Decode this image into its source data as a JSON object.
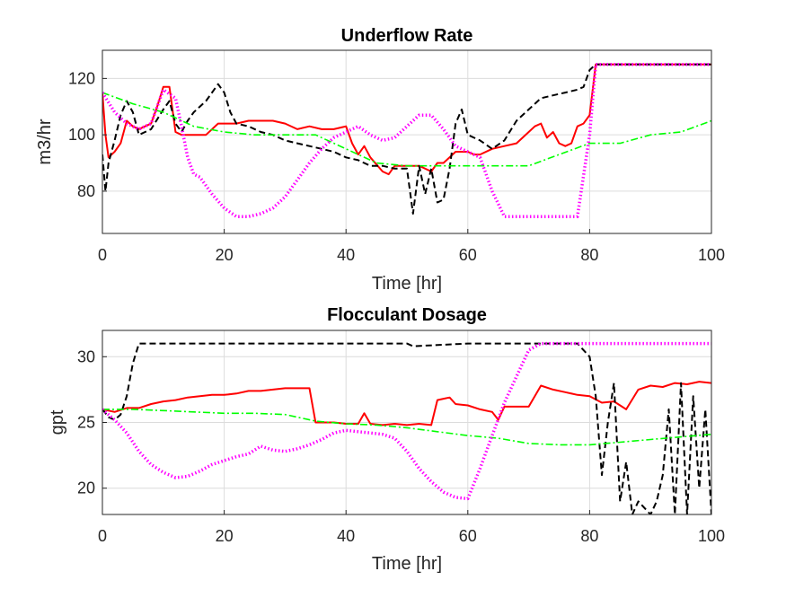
{
  "chart_data": [
    {
      "type": "line",
      "title": "Underflow Rate",
      "xlabel": "Time [hr]",
      "ylabel": "m3/hr",
      "xlim": [
        0,
        100
      ],
      "ylim": [
        65,
        130
      ],
      "xticks": [
        0,
        20,
        40,
        60,
        80,
        100
      ],
      "xtick_labels": [
        "0",
        "20",
        "40",
        "60",
        "80",
        "100"
      ],
      "yticks": [
        80,
        100,
        120
      ],
      "ytick_labels": [
        "80",
        "100",
        "120"
      ],
      "grid": true,
      "series": [
        {
          "color": "#ff0000",
          "style": "solid",
          "x": [
            0,
            0.5,
            1,
            2,
            3,
            4,
            5,
            6,
            7,
            8,
            9,
            10,
            11,
            12,
            13,
            14,
            15,
            17,
            19,
            20,
            22,
            24,
            26,
            28,
            30,
            32,
            34,
            36,
            38,
            40,
            41,
            42,
            43,
            44,
            46,
            47,
            48,
            50,
            52,
            54,
            55,
            56,
            57,
            58,
            60,
            61,
            62,
            64,
            66,
            68,
            70,
            71,
            72,
            73,
            74,
            75,
            76,
            77,
            78,
            79,
            80,
            81,
            85,
            90,
            95,
            100
          ],
          "y": [
            115,
            100,
            92,
            94,
            97,
            105,
            103,
            102,
            103,
            104,
            110,
            117,
            117,
            101,
            100,
            100,
            100,
            100,
            104,
            104,
            104,
            105,
            105,
            105,
            104,
            102,
            103,
            102,
            102,
            103,
            97,
            93,
            96,
            92,
            87,
            86,
            89,
            89,
            89,
            87,
            90,
            90,
            92,
            94,
            94,
            93,
            93,
            95,
            96,
            97,
            101,
            103,
            104,
            99,
            101,
            97,
            96,
            97,
            103,
            104,
            107,
            125,
            125,
            125,
            125,
            125
          ]
        },
        {
          "color": "#000000",
          "style": "dashed",
          "x": [
            0,
            0.5,
            1,
            2,
            3,
            4,
            5,
            6,
            8,
            10,
            11,
            12,
            13,
            14,
            15,
            17,
            19,
            20,
            21,
            22,
            24,
            26,
            28,
            30,
            32,
            34,
            36,
            38,
            40,
            42,
            44,
            46,
            48,
            50,
            51,
            52,
            53,
            54,
            55,
            56,
            57,
            58,
            59,
            60,
            62,
            64,
            66,
            68,
            70,
            72,
            74,
            76,
            78,
            79,
            80,
            81,
            85,
            90,
            95,
            100
          ],
          "y": [
            93,
            80,
            90,
            98,
            107,
            112,
            108,
            100,
            102,
            109,
            112,
            104,
            101,
            105,
            108,
            112,
            118,
            115,
            108,
            104,
            103,
            101,
            100,
            98,
            97,
            96,
            95,
            94,
            92,
            91,
            89,
            89,
            88,
            88,
            72,
            89,
            79,
            88,
            76,
            77,
            88,
            104,
            109,
            100,
            98,
            95,
            98,
            105,
            109,
            113,
            114,
            115,
            116,
            117,
            123,
            125,
            125,
            125,
            125,
            125
          ]
        },
        {
          "color": "#00ff00",
          "style": "dashdot",
          "x": [
            0,
            5,
            10,
            15,
            20,
            25,
            30,
            35,
            40,
            45,
            50,
            55,
            60,
            65,
            70,
            75,
            80,
            85,
            90,
            95,
            100
          ],
          "y": [
            115,
            111,
            108,
            103,
            101,
            100,
            100,
            100,
            95,
            90,
            89,
            89,
            89,
            89,
            89,
            93,
            97,
            97,
            100,
            101,
            105
          ]
        },
        {
          "color": "#ff00ff",
          "style": "dotted",
          "x": [
            0,
            2,
            4,
            6,
            8,
            10,
            12,
            13,
            14,
            15,
            16,
            18,
            20,
            22,
            24,
            26,
            28,
            30,
            32,
            34,
            36,
            38,
            40,
            42,
            44,
            46,
            48,
            50,
            52,
            54,
            56,
            58,
            60,
            62,
            64,
            66,
            68,
            70,
            72,
            74,
            76,
            78,
            80,
            81,
            85,
            90,
            95,
            100
          ],
          "y": [
            115,
            108,
            104,
            102,
            104,
            116,
            113,
            103,
            92,
            86,
            85,
            79,
            74,
            71,
            71,
            72,
            74,
            78,
            84,
            90,
            95,
            99,
            101,
            103,
            100,
            98,
            99,
            103,
            107,
            107,
            102,
            96,
            94,
            92,
            80,
            71,
            71,
            71,
            71,
            71,
            71,
            71,
            100,
            125,
            125,
            125,
            125,
            125
          ]
        }
      ]
    },
    {
      "type": "line",
      "title": "Flocculant Dosage",
      "xlabel": "Time [hr]",
      "ylabel": "gpt",
      "xlim": [
        0,
        100
      ],
      "ylim": [
        18,
        32
      ],
      "xticks": [
        0,
        20,
        40,
        60,
        80,
        100
      ],
      "xtick_labels": [
        "0",
        "20",
        "40",
        "60",
        "80",
        "100"
      ],
      "yticks": [
        20,
        25,
        30
      ],
      "ytick_labels": [
        "20",
        "25",
        "30"
      ],
      "grid": true,
      "series": [
        {
          "color": "#ff0000",
          "style": "solid",
          "x": [
            0,
            2,
            4,
            6,
            8,
            10,
            12,
            14,
            16,
            18,
            20,
            22,
            24,
            26,
            28,
            30,
            32,
            34,
            35,
            36,
            38,
            40,
            42,
            43,
            44,
            46,
            48,
            50,
            52,
            54,
            55,
            56,
            57,
            58,
            60,
            62,
            64,
            65,
            66,
            68,
            70,
            72,
            74,
            76,
            78,
            80,
            82,
            84,
            86,
            88,
            90,
            92,
            94,
            96,
            98,
            100
          ],
          "y": [
            26,
            25.8,
            26.1,
            26.1,
            26.4,
            26.6,
            26.7,
            26.9,
            27.0,
            27.1,
            27.1,
            27.2,
            27.4,
            27.4,
            27.5,
            27.6,
            27.6,
            27.6,
            25.0,
            25.0,
            25.0,
            24.9,
            24.9,
            25.7,
            24.9,
            24.8,
            24.9,
            24.8,
            24.9,
            24.8,
            26.7,
            26.8,
            26.9,
            26.4,
            26.3,
            26.0,
            25.8,
            25.2,
            26.2,
            26.2,
            26.2,
            27.8,
            27.5,
            27.3,
            27.1,
            27.0,
            26.5,
            26.6,
            26.0,
            27.5,
            27.8,
            27.7,
            28.0,
            27.9,
            28.1,
            28.0
          ]
        },
        {
          "color": "#000000",
          "style": "dashed",
          "x": [
            0,
            1,
            2,
            3,
            4,
            5,
            6,
            10,
            20,
            30,
            40,
            50,
            51,
            60,
            70,
            78,
            80,
            81,
            82,
            83,
            84,
            85,
            86,
            87,
            88,
            89,
            90,
            91,
            92,
            93,
            94,
            95,
            96,
            97,
            98,
            99,
            100
          ],
          "y": [
            26,
            25.4,
            25.2,
            25.6,
            27.0,
            29.5,
            31.0,
            31.0,
            31.0,
            31.0,
            31.0,
            31.0,
            30.8,
            31.0,
            31.0,
            31.0,
            30.0,
            27.0,
            21.0,
            25.0,
            28.0,
            19.0,
            22.0,
            18.0,
            19.0,
            18.5,
            18.0,
            19.0,
            21.0,
            26.0,
            18.0,
            28.0,
            18.0,
            27.0,
            20.0,
            26.0,
            18.0
          ]
        },
        {
          "color": "#00ff00",
          "style": "dashdot",
          "x": [
            0,
            5,
            10,
            15,
            20,
            25,
            30,
            35,
            40,
            45,
            50,
            55,
            60,
            65,
            70,
            75,
            80,
            85,
            90,
            95,
            100
          ],
          "y": [
            26,
            26,
            25.9,
            25.8,
            25.7,
            25.7,
            25.6,
            25.1,
            24.9,
            24.8,
            24.6,
            24.3,
            24.0,
            23.8,
            23.4,
            23.3,
            23.3,
            23.5,
            23.7,
            23.9,
            24.1
          ]
        },
        {
          "color": "#ff00ff",
          "style": "dotted",
          "x": [
            0,
            2,
            4,
            6,
            8,
            10,
            12,
            14,
            16,
            18,
            20,
            22,
            24,
            26,
            28,
            30,
            32,
            34,
            36,
            38,
            40,
            42,
            44,
            46,
            48,
            50,
            52,
            54,
            56,
            58,
            60,
            62,
            64,
            66,
            68,
            70,
            72,
            74,
            78,
            80,
            85,
            90,
            95,
            100
          ],
          "y": [
            26,
            25.2,
            24.2,
            22.8,
            21.8,
            21.2,
            20.8,
            20.9,
            21.3,
            21.8,
            22.1,
            22.4,
            22.6,
            23.2,
            22.9,
            22.8,
            23.0,
            23.3,
            23.7,
            24.2,
            24.4,
            24.3,
            24.2,
            24.1,
            23.8,
            22.8,
            21.5,
            20.5,
            19.7,
            19.3,
            19.2,
            21.5,
            24.0,
            26.5,
            28.5,
            30.5,
            31.0,
            31.0,
            31.0,
            31.0,
            31.0,
            31.0,
            31.0,
            31.0
          ]
        }
      ]
    }
  ]
}
